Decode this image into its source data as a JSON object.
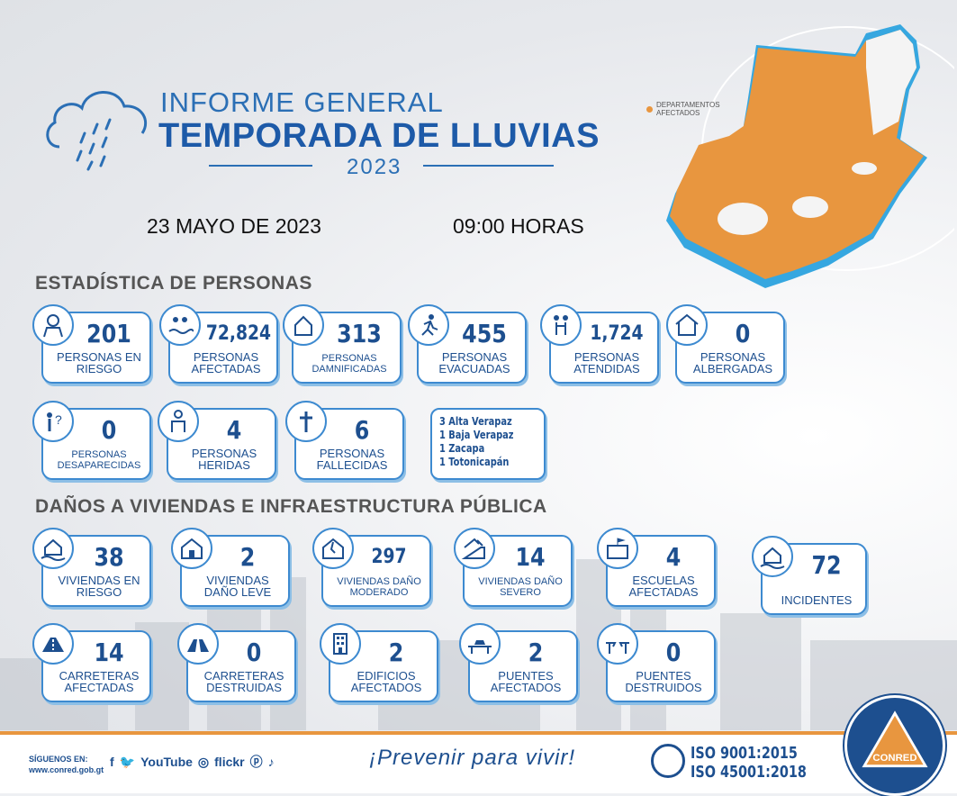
{
  "header": {
    "title_line1": "INFORME GENERAL",
    "title_line2": "TEMPORADA DE LLUVIAS",
    "year": "2023",
    "date": "23 MAYO DE 2023",
    "time": "09:00 HORAS"
  },
  "map": {
    "legend_label": "DEPARTAMENTOS AFECTADOS",
    "affected_color": "#e8963f"
  },
  "sections": {
    "persons": "ESTADÍSTICA DE PERSONAS",
    "damages": "DAÑOS A VIVIENDAS E INFRAESTRUCTURA PÚBLICA"
  },
  "persons": [
    {
      "value": "201",
      "label": "PERSONAS EN RIESGO",
      "icon": "people-rain-icon"
    },
    {
      "value": "72,824",
      "label": "PERSONAS AFECTADAS",
      "icon": "flood-people-icon"
    },
    {
      "value": "313",
      "label": "PERSONAS DAMNIFICADAS",
      "icon": "family-house-icon"
    },
    {
      "value": "455",
      "label": "PERSONAS EVACUADAS",
      "icon": "running-person-icon"
    },
    {
      "value": "1,724",
      "label": "PERSONAS ATENDIDAS",
      "icon": "helping-person-icon"
    },
    {
      "value": "0",
      "label": "PERSONAS ALBERGADAS",
      "icon": "shelter-icon"
    },
    {
      "value": "0",
      "label": "PERSONAS DESAPARECIDAS",
      "icon": "missing-person-icon"
    },
    {
      "value": "4",
      "label": "PERSONAS HERIDAS",
      "icon": "injured-person-icon"
    },
    {
      "value": "6",
      "label": "PERSONAS FALLECIDAS",
      "icon": "cross-icon"
    }
  ],
  "deaths_detail": [
    "3 Alta Verapaz",
    "1 Baja Verapaz",
    "1 Zacapa",
    "1 Totonicapán"
  ],
  "damages": [
    {
      "value": "38",
      "label": "VIVIENDAS EN RIESGO",
      "icon": "house-flood-icon"
    },
    {
      "value": "2",
      "label": "VIVIENDAS DAÑO LEVE",
      "icon": "house-light-damage-icon"
    },
    {
      "value": "297",
      "label": "VIVIENDAS DAÑO MODERADO",
      "icon": "house-moderate-damage-icon"
    },
    {
      "value": "14",
      "label": "VIVIENDAS DAÑO SEVERO",
      "icon": "house-severe-damage-icon"
    },
    {
      "value": "4",
      "label": "ESCUELAS AFECTADAS",
      "icon": "school-icon"
    },
    {
      "value": "72",
      "label": "INCIDENTES",
      "icon": "house-waves-icon"
    },
    {
      "value": "14",
      "label": "CARRETERAS AFECTADAS",
      "icon": "road-icon"
    },
    {
      "value": "0",
      "label": "CARRETERAS DESTRUIDAS",
      "icon": "road-broken-icon"
    },
    {
      "value": "2",
      "label": "EDIFICIOS AFECTADOS",
      "icon": "building-icon"
    },
    {
      "value": "2",
      "label": "PUENTES AFECTADOS",
      "icon": "bridge-car-icon"
    },
    {
      "value": "0",
      "label": "PUENTES DESTRUIDOS",
      "icon": "bridge-broken-icon"
    }
  ],
  "footer": {
    "follow_label": "SÍGUENOS EN:",
    "website": "www.conred.gob.gt",
    "social": [
      "f",
      "🐦",
      "YouTube",
      "◎",
      "flickr",
      "ⓟ",
      "♪"
    ],
    "slogan": "¡Prevenir para vivir!",
    "iso1": "ISO  9001:2015",
    "iso2": "ISO  45001:2018",
    "brand": "CONRED",
    "accent_color": "#e8963f",
    "brand_color": "#1d4f8f"
  }
}
